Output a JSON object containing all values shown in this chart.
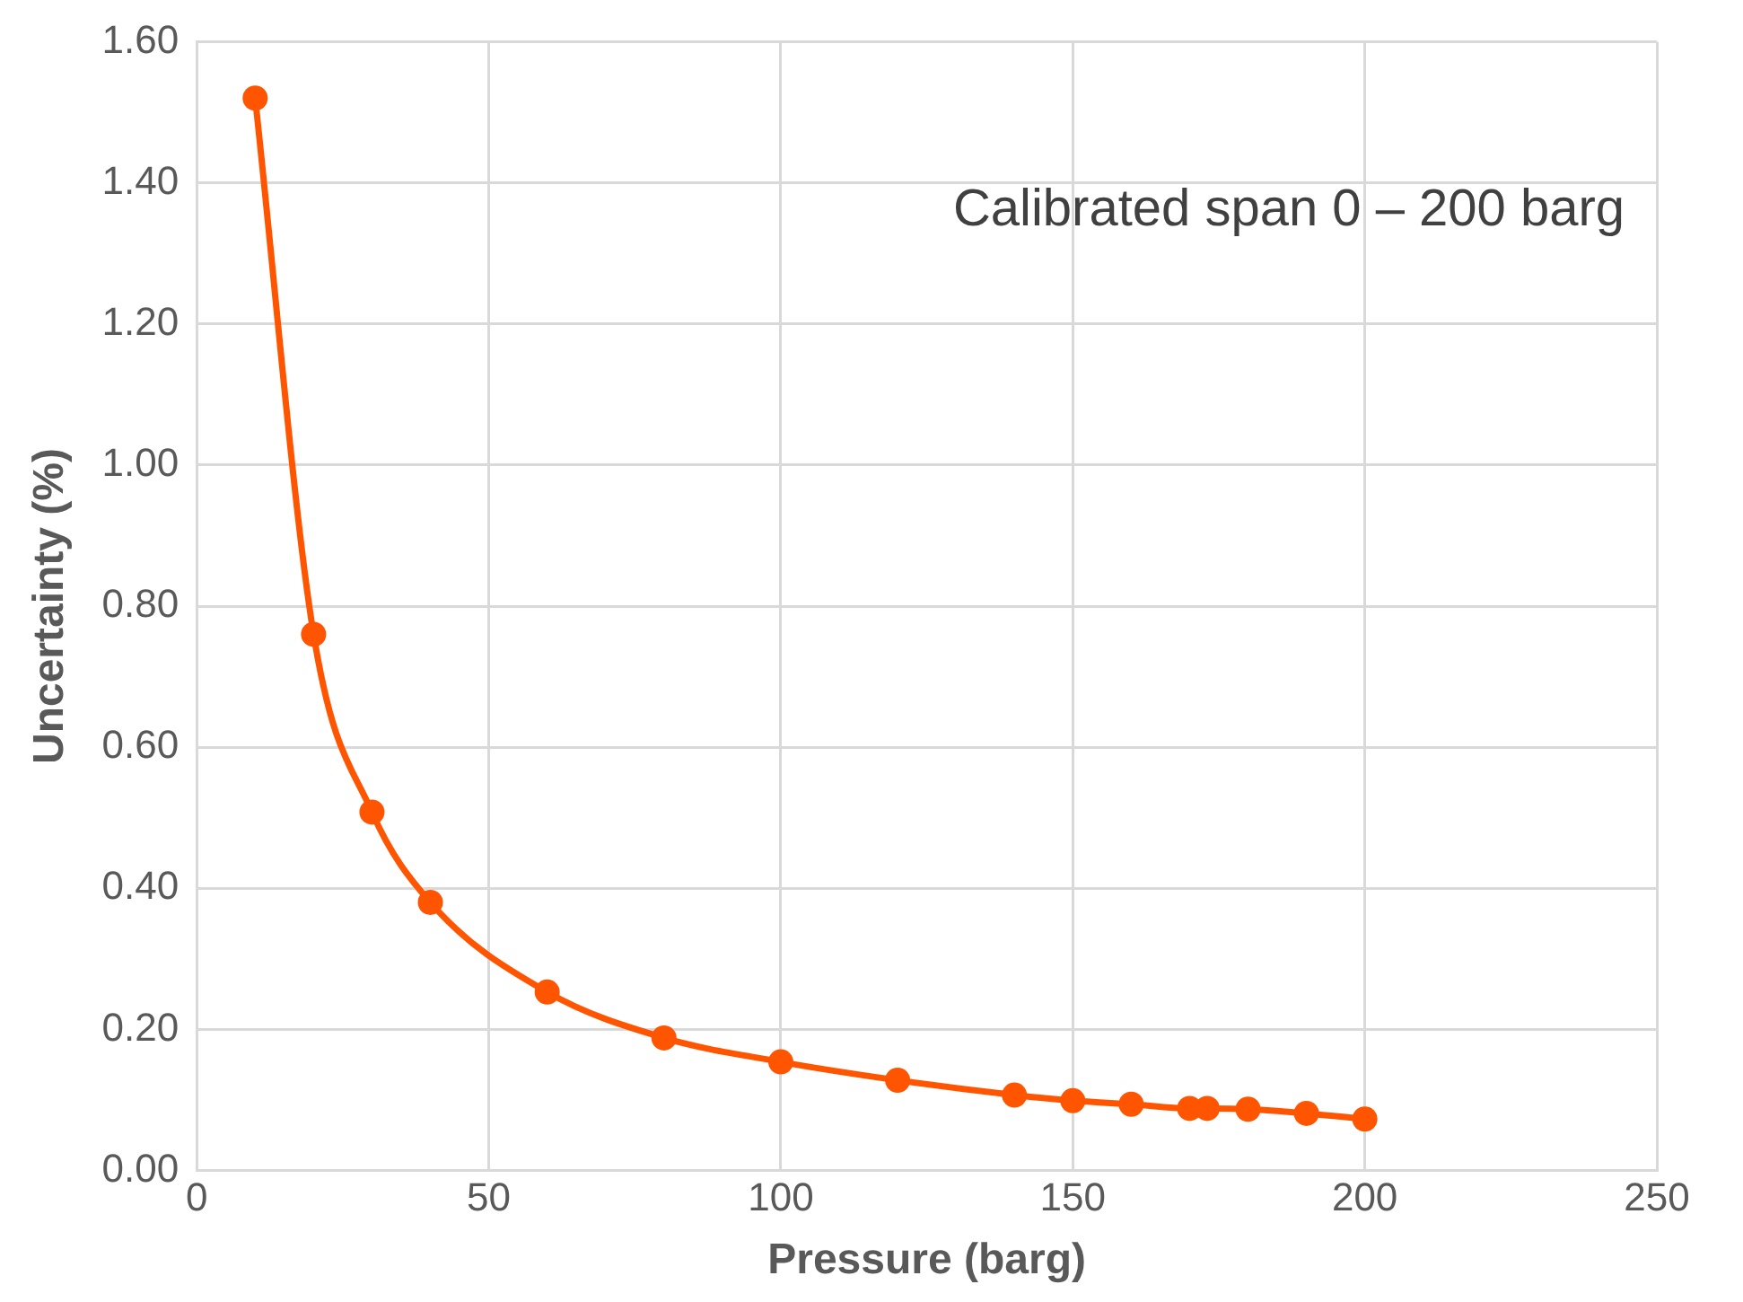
{
  "chart_data": {
    "type": "line",
    "xlabel": "Pressure (barg)",
    "ylabel": "Uncertainty (%)",
    "annotations": [
      "Calibrated span 0 – 200 barg"
    ],
    "x": [
      10,
      20,
      30,
      40,
      60,
      80,
      100,
      120,
      140,
      150,
      160,
      170,
      173,
      180,
      190,
      200
    ],
    "series": [
      {
        "color": "#ff5500",
        "values": [
          1.52,
          0.76,
          0.508,
          0.38,
          0.253,
          0.188,
          0.154,
          0.128,
          0.107,
          0.099,
          0.094,
          0.088,
          0.088,
          0.087,
          0.081,
          0.073
        ]
      }
    ],
    "xlim": [
      0,
      250
    ],
    "xticks": [
      0,
      50,
      100,
      150,
      200,
      250
    ],
    "ylim": [
      0,
      1.6
    ],
    "yticks": [
      {
        "value": 0,
        "label": "0.00"
      },
      {
        "value": 0.2,
        "label": "0.20"
      },
      {
        "value": 0.4,
        "label": "0.40"
      },
      {
        "value": 0.6,
        "label": "0.60"
      },
      {
        "value": 0.8,
        "label": "0.80"
      },
      {
        "value": 1,
        "label": "1.00"
      },
      {
        "value": 1.2,
        "label": "1.20"
      },
      {
        "value": 1.4,
        "label": "1.40"
      },
      {
        "value": 1.6,
        "label": "1.60"
      }
    ],
    "grid": true,
    "legend": false,
    "marker": "circle",
    "line_style": "solid"
  }
}
